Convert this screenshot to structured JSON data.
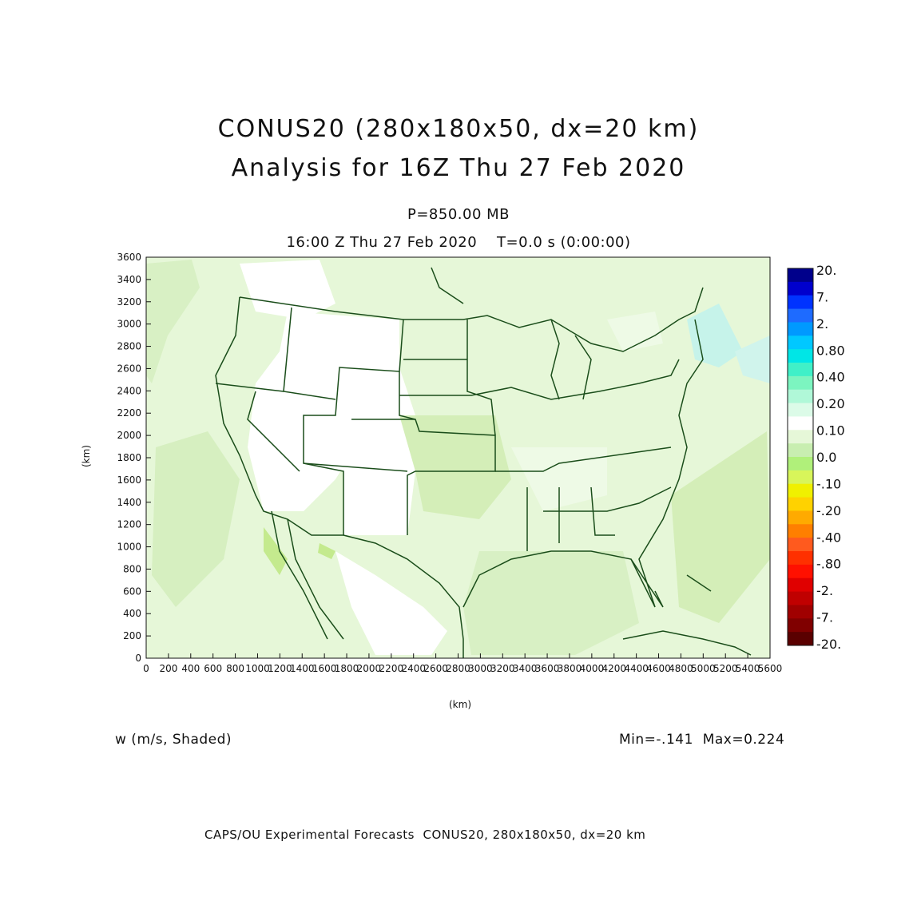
{
  "title": {
    "line1": "CONUS20 (280x180x50, dx=20 km)",
    "line2": "Analysis for 16Z Thu 27 Feb 2020"
  },
  "level_label": "P=850.00 MB",
  "time_label": "16:00 Z Thu 27 Feb 2020    T=0.0 s (0:00:00)",
  "axes": {
    "x_unit": "(km)",
    "y_unit": "(km)",
    "x_ticks": [
      "0",
      "200",
      "400",
      "600",
      "800",
      "1000",
      "1200",
      "1400",
      "1600",
      "1800",
      "2000",
      "2200",
      "2400",
      "2600",
      "2800",
      "3000",
      "3200",
      "3400",
      "3600",
      "3800",
      "4000",
      "4200",
      "4400",
      "4600",
      "4800",
      "5000",
      "5200",
      "5400",
      "5600"
    ],
    "y_ticks": [
      "0",
      "200",
      "400",
      "600",
      "800",
      "1000",
      "1200",
      "1400",
      "1600",
      "1800",
      "2000",
      "2200",
      "2400",
      "2600",
      "2800",
      "3000",
      "3200",
      "3400",
      "3600"
    ],
    "x_range": [
      0,
      5600
    ],
    "y_range": [
      0,
      3600
    ]
  },
  "colorbar": {
    "labels": [
      "20.",
      "7.",
      "2.",
      "0.80",
      "0.40",
      "0.20",
      "0.10",
      "0.0",
      "-.10",
      "-.20",
      "-.40",
      "-.80",
      "-2.",
      "-7.",
      "-20."
    ],
    "colors": [
      "#00008b",
      "#0000cd",
      "#0033ff",
      "#1e6bff",
      "#0099ff",
      "#00c8ff",
      "#00e6e6",
      "#40f0c8",
      "#7cf5c0",
      "#b0f8d8",
      "#dcfbe8",
      "#ffffff",
      "#e6f7d8",
      "#c8eeb0",
      "#b0f07a",
      "#d8f55a",
      "#f0f000",
      "#ffd200",
      "#ffaa00",
      "#ff7f00",
      "#ff5a1e",
      "#ff3000",
      "#ff1000",
      "#e00000",
      "#c00000",
      "#a00000",
      "#800000",
      "#5a0000"
    ]
  },
  "field_label": "w (m/s, Shaded)",
  "minmax": "Min=-.141  Max=0.224",
  "footer": "CAPS/OU Experimental Forecasts  CONUS20, 280x180x50, dx=20 km"
}
